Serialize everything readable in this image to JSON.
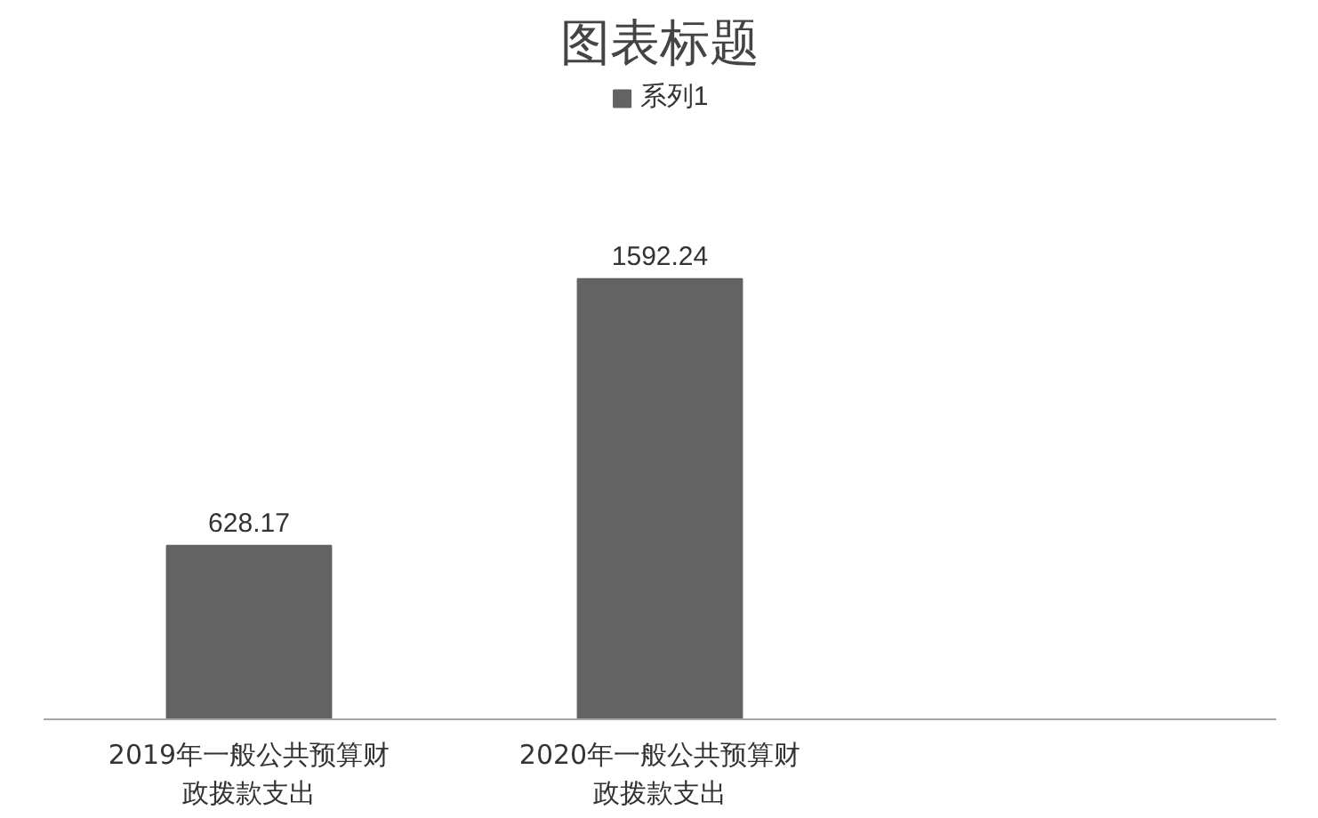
{
  "chart_data": {
    "type": "bar",
    "title": "图表标题",
    "categories": [
      "2019年一般公共预算财政拨款支出",
      "2020年一般公共预算财政拨款支出",
      null
    ],
    "series": [
      {
        "name": "系列1",
        "color": "#636363",
        "values": [
          628.17,
          1592.24,
          null
        ]
      }
    ],
    "data_labels": true,
    "legend": "top",
    "grid": false
  }
}
